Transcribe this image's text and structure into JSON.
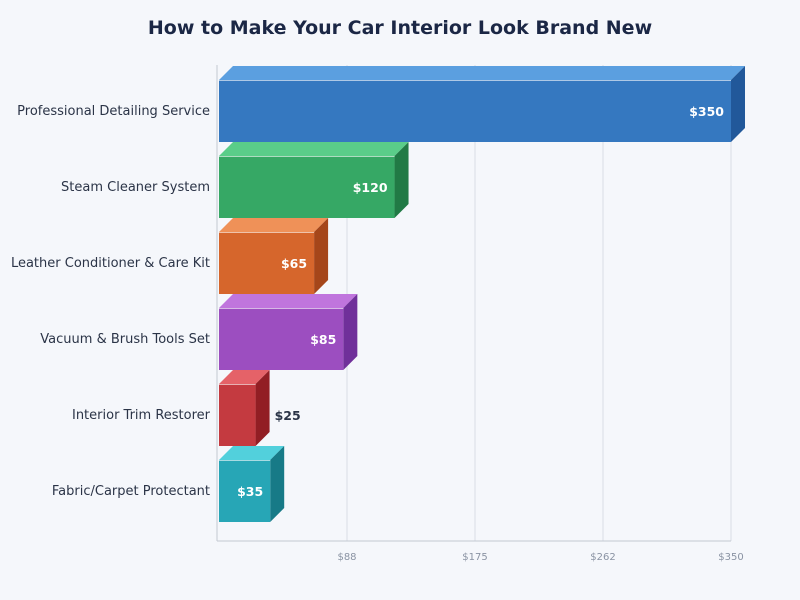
{
  "chart_data": {
    "type": "bar",
    "orientation": "horizontal",
    "style": "3d",
    "title": "How to Make Your Car Interior Look Brand New",
    "xlabel": "",
    "ylabel": "",
    "xlim": [
      0,
      350
    ],
    "grid": true,
    "x_ticks": [
      "$88",
      "$175",
      "$262",
      "$350"
    ],
    "x_tick_values": [
      87.5,
      175,
      262.5,
      350
    ],
    "categories": [
      "Professional Detailing Service",
      "Steam Cleaner System",
      "Leather Conditioner & Care Kit",
      "Vacuum & Brush Tools Set",
      "Interior Trim Restorer",
      "Fabric/Carpet Protectant"
    ],
    "values": [
      350,
      120,
      65,
      85,
      25,
      35
    ],
    "data_labels": [
      "$350",
      "$120",
      "$65",
      "$85",
      "$25",
      "$35"
    ],
    "colors": [
      {
        "front": "#3578c0",
        "top": "#5b9fe0",
        "side": "#21589a"
      },
      {
        "front": "#36a865",
        "top": "#5acd89",
        "side": "#217a45"
      },
      {
        "front": "#d6662c",
        "top": "#ef9158",
        "side": "#a5461a"
      },
      {
        "front": "#9c4ec0",
        "top": "#c075dd",
        "side": "#70309a"
      },
      {
        "front": "#c43a40",
        "top": "#e56268",
        "side": "#921e24"
      },
      {
        "front": "#27a6b6",
        "top": "#52d0dc",
        "side": "#177a87"
      }
    ]
  }
}
